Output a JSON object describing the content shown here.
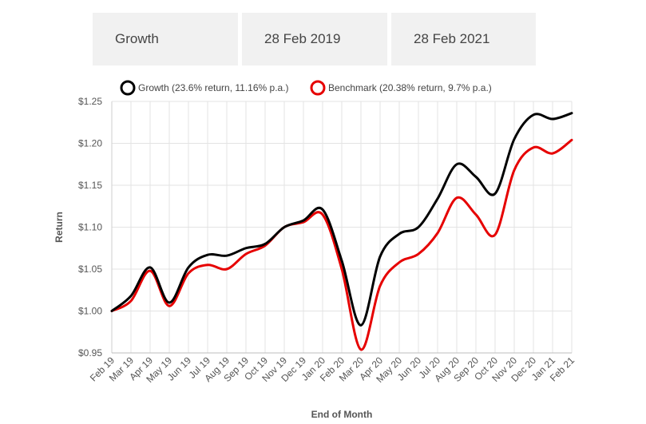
{
  "selectors": {
    "fund": "Growth",
    "start_date": "28 Feb 2019",
    "end_date": "28 Feb 2021"
  },
  "chart_data": {
    "type": "line",
    "xlabel": "End of Month",
    "ylabel": "Return",
    "ylim": [
      0.95,
      1.25
    ],
    "yticks": [
      "$0.95",
      "$1.00",
      "$1.05",
      "$1.10",
      "$1.15",
      "$1.20",
      "$1.25"
    ],
    "ytick_values": [
      0.95,
      1.0,
      1.05,
      1.1,
      1.15,
      1.2,
      1.25
    ],
    "categories": [
      "Feb 19",
      "Mar 19",
      "Apr 19",
      "May 19",
      "Jun 19",
      "Jul 19",
      "Aug 19",
      "Sep 19",
      "Oct 19",
      "Nov 19",
      "Dec 19",
      "Jan 20",
      "Feb 20",
      "Mar 20",
      "Apr 20",
      "May 20",
      "Jun 20",
      "Jul 20",
      "Aug 20",
      "Sep 20",
      "Oct 20",
      "Nov 20",
      "Dec 20",
      "Jan 21",
      "Feb 21"
    ],
    "grid": true,
    "legend_position": "top",
    "series": [
      {
        "name": "Growth (23.6% return, 11.16% p.a.)",
        "color": "#000000",
        "values": [
          1.0,
          1.018,
          1.052,
          1.01,
          1.052,
          1.067,
          1.066,
          1.075,
          1.08,
          1.1,
          1.108,
          1.121,
          1.06,
          0.983,
          1.065,
          1.092,
          1.1,
          1.134,
          1.175,
          1.16,
          1.14,
          1.205,
          1.234,
          1.229,
          1.236
        ]
      },
      {
        "name": "Benchmark (20.38% return, 9.7% p.a.)",
        "color": "#e60000",
        "values": [
          1.0,
          1.012,
          1.048,
          1.006,
          1.045,
          1.055,
          1.05,
          1.068,
          1.078,
          1.1,
          1.106,
          1.115,
          1.05,
          0.954,
          1.03,
          1.058,
          1.068,
          1.093,
          1.135,
          1.115,
          1.091,
          1.168,
          1.195,
          1.188,
          1.204
        ]
      }
    ]
  }
}
